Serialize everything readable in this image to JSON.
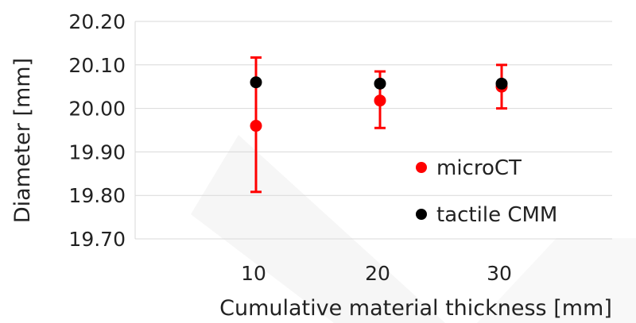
{
  "chart_data": {
    "type": "scatter",
    "title": "",
    "xlabel": "Cumulative material thickness [mm]",
    "ylabel": "Diameter [mm]",
    "x_categories": [
      "10",
      "20",
      "30"
    ],
    "ylim": [
      19.7,
      20.2
    ],
    "yticks": [
      "20.20",
      "20.10",
      "20.00",
      "19.90",
      "19.80",
      "19.70"
    ],
    "grid": "horizontal",
    "legend_position": "bottom-right",
    "series": [
      {
        "name": "microCT",
        "color": "#ff0000",
        "values": [
          19.96,
          20.018,
          20.05
        ],
        "error_upper": [
          20.117,
          20.085,
          20.1
        ],
        "error_lower": [
          19.808,
          19.955,
          20.0
        ]
      },
      {
        "name": "tactile CMM",
        "color": "#000000",
        "values": [
          20.06,
          20.057,
          20.057
        ]
      }
    ]
  }
}
